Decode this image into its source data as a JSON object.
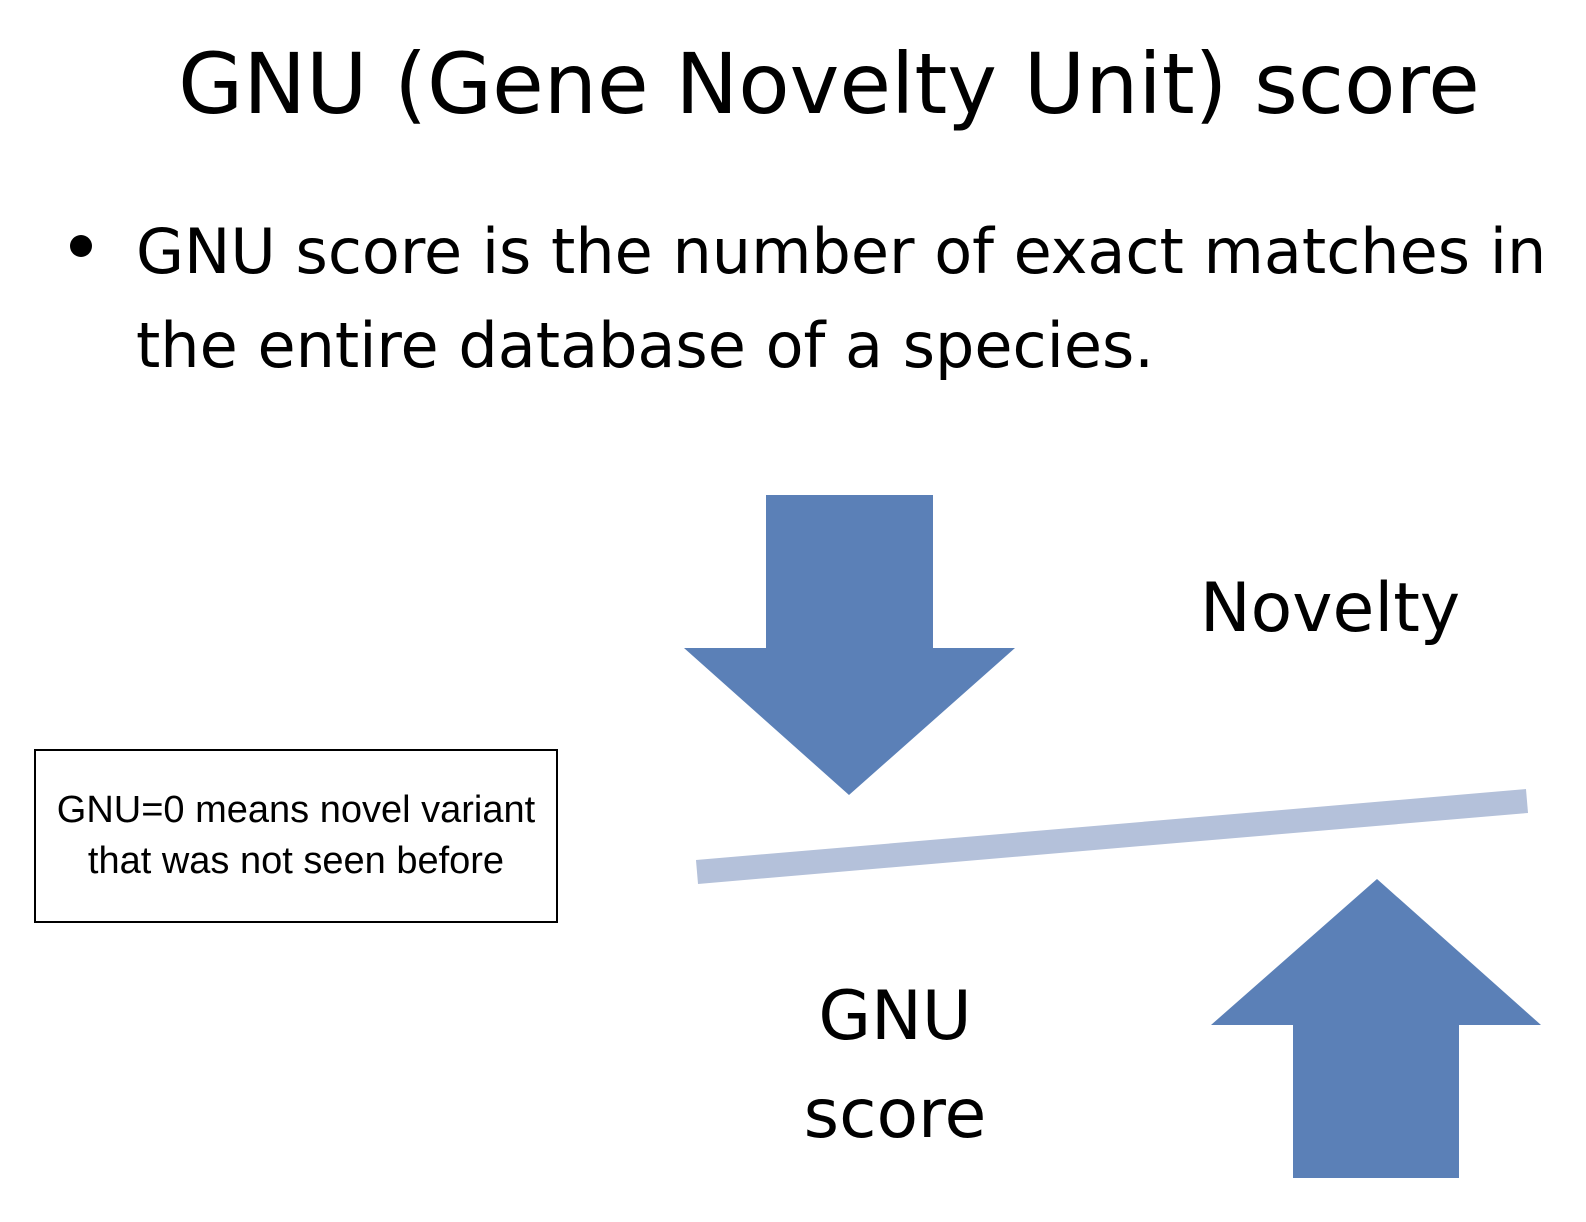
{
  "title": "GNU (Gene Novelty Unit) score",
  "bullets": [
    "GNU score is the number of exact matches in the entire database of a species."
  ],
  "diagram": {
    "novelty_label": "Novelty",
    "gnu_label_line1": "GNU",
    "gnu_label_line2": "score",
    "note": "GNU=0 means novel variant that was not seen before",
    "colors": {
      "arrow": "#5B80B7",
      "balance_bar": "#B4C1DA"
    },
    "icons": [
      "arrow-down-icon",
      "arrow-up-icon"
    ]
  }
}
